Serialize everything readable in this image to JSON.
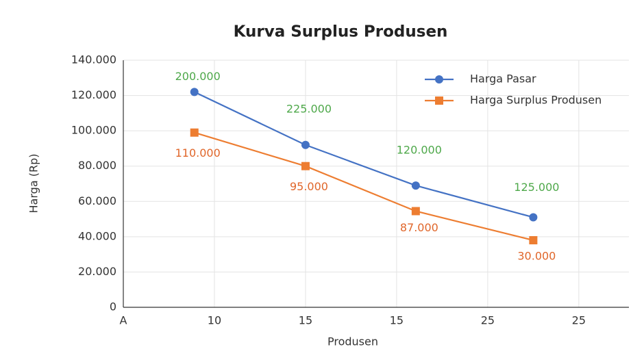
{
  "chart_data": {
    "type": "line",
    "title": "Kurva Surplus Produsen",
    "x_label": "Produsen",
    "y_label": "Harga (Rp)",
    "x": [
      0.78,
      2.0,
      3.21,
      4.5
    ],
    "xlim": [
      0,
      5.55
    ],
    "xticks": [
      {
        "value": 0,
        "label": "A"
      },
      {
        "value": 1,
        "label": "10"
      },
      {
        "value": 2,
        "label": "15"
      },
      {
        "value": 3,
        "label": "15"
      },
      {
        "value": 4,
        "label": "25"
      },
      {
        "value": 5,
        "label": "25"
      }
    ],
    "ylim": [
      0,
      140000
    ],
    "yticks": [
      0,
      {
        "value": 20000,
        "label": "20.000"
      },
      {
        "value": 40000,
        "label": "40.000"
      },
      {
        "value": 60000,
        "label": "60.000"
      },
      {
        "value": 80000,
        "label": "80.000"
      },
      {
        "value": 100000,
        "label": "100.000"
      },
      {
        "value": 120000,
        "label": "120.000"
      },
      {
        "value": 140000,
        "label": "140.000"
      }
    ],
    "grid": true,
    "legend": "upper right",
    "series": [
      {
        "name": "Harga Pasar",
        "color": "#4472c4",
        "marker": "circle",
        "values": [
          122000,
          92000,
          69000,
          51000
        ],
        "annotations": [
          "200.000",
          "225.000",
          "120.000",
          "125.000"
        ],
        "annotation_color": "#4ea84a"
      },
      {
        "name": "Harga Surplus Produsen",
        "color": "#ed7d31",
        "marker": "square",
        "values": [
          99000,
          80000,
          54500,
          38000
        ],
        "annotations": [
          "110.000",
          "95.000",
          "87.000",
          "30.000"
        ],
        "annotation_color": "#e0662a"
      }
    ]
  }
}
